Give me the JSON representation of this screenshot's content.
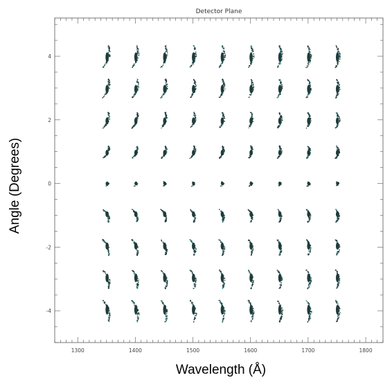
{
  "chart_data": {
    "type": "scatter",
    "title": "Detector Plane",
    "xlabel": "Wavelength (Å)",
    "ylabel": "Angle (Degrees)",
    "xlim": [
      1260,
      1830
    ],
    "ylim": [
      -5,
      5.2
    ],
    "x_ticks": [
      1300,
      1400,
      1500,
      1600,
      1700,
      1800
    ],
    "x_tick_labels": [
      "1300",
      "1400",
      "1500",
      "1600",
      "1700",
      "1800"
    ],
    "y_ticks": [
      -4,
      -2,
      0,
      2,
      4
    ],
    "y_tick_labels": [
      "-4",
      "-2",
      "0",
      "2",
      "4"
    ],
    "grid": false,
    "spot_color": "#1f3b3b",
    "spot_highlight": "#3a8a8a",
    "wavelengths": [
      1350,
      1400,
      1450,
      1500,
      1550,
      1600,
      1650,
      1700,
      1750
    ],
    "angles": [
      4,
      3,
      2,
      1,
      0,
      -1,
      -2,
      -3,
      -4
    ]
  }
}
